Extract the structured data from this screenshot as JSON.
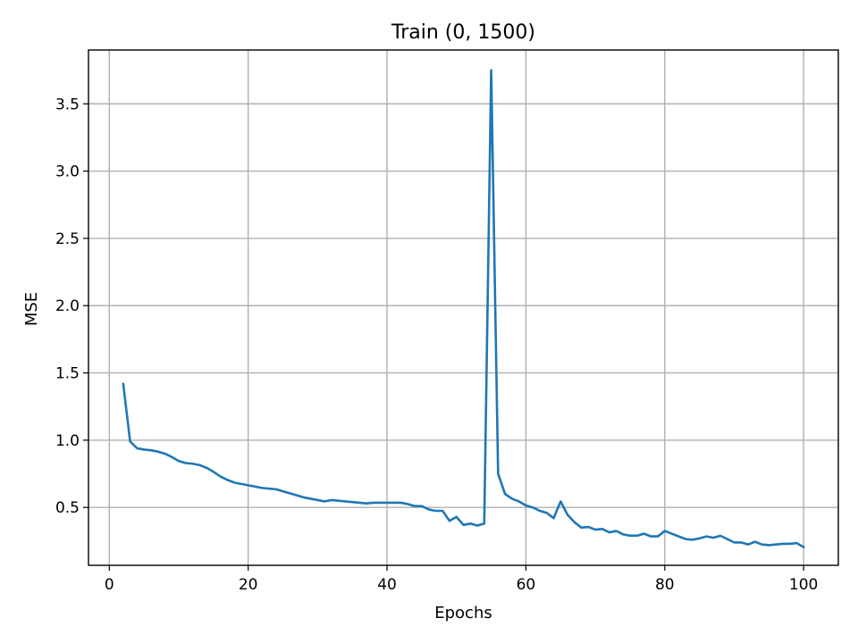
{
  "chart_data": {
    "type": "line",
    "title": "Train (0, 1500)",
    "xlabel": "Epochs",
    "ylabel": "MSE",
    "xlim": [
      -3,
      105
    ],
    "ylim": [
      0.07,
      3.9
    ],
    "x_ticks": [
      0,
      20,
      40,
      60,
      80,
      100
    ],
    "y_ticks": [
      0.5,
      1.0,
      1.5,
      2.0,
      2.5,
      3.0,
      3.5
    ],
    "x_tick_labels": [
      "0",
      "20",
      "40",
      "60",
      "80",
      "100"
    ],
    "y_tick_labels": [
      "0.5",
      "1.0",
      "1.5",
      "2.0",
      "2.5",
      "3.0",
      "3.5"
    ],
    "grid": true,
    "line_color": "#1f77b4",
    "series": [
      {
        "x": [
          2,
          3,
          4,
          5,
          6,
          7,
          8,
          9,
          10,
          11,
          12,
          13,
          14,
          15,
          16,
          17,
          18,
          19,
          20,
          21,
          22,
          23,
          24,
          25,
          26,
          27,
          28,
          29,
          30,
          31,
          32,
          33,
          34,
          35,
          36,
          37,
          38,
          39,
          40,
          41,
          42,
          43,
          44,
          45,
          46,
          47,
          48,
          49,
          50,
          51,
          52,
          53,
          54,
          55,
          56,
          57,
          58,
          59,
          60,
          61,
          62,
          63,
          64,
          65,
          66,
          67,
          68,
          69,
          70,
          71,
          72,
          73,
          74,
          75,
          76,
          77,
          78,
          79,
          80,
          81,
          82,
          83,
          84,
          85,
          86,
          87,
          88,
          89,
          90,
          91,
          92,
          93,
          94,
          95,
          96,
          97,
          98,
          99,
          100
        ],
        "y": [
          1.42,
          0.99,
          0.94,
          0.93,
          0.925,
          0.915,
          0.9,
          0.875,
          0.845,
          0.83,
          0.825,
          0.815,
          0.795,
          0.765,
          0.73,
          0.705,
          0.685,
          0.675,
          0.665,
          0.655,
          0.645,
          0.64,
          0.635,
          0.62,
          0.605,
          0.59,
          0.575,
          0.565,
          0.555,
          0.545,
          0.555,
          0.55,
          0.545,
          0.54,
          0.535,
          0.53,
          0.535,
          0.535,
          0.535,
          0.535,
          0.535,
          0.525,
          0.51,
          0.51,
          0.485,
          0.475,
          0.475,
          0.4,
          0.43,
          0.37,
          0.38,
          0.365,
          0.38,
          3.75,
          0.75,
          0.6,
          0.565,
          0.545,
          0.515,
          0.5,
          0.475,
          0.46,
          0.42,
          0.545,
          0.445,
          0.39,
          0.35,
          0.355,
          0.335,
          0.34,
          0.315,
          0.325,
          0.3,
          0.29,
          0.29,
          0.305,
          0.285,
          0.285,
          0.325,
          0.305,
          0.285,
          0.265,
          0.26,
          0.27,
          0.285,
          0.275,
          0.29,
          0.265,
          0.24,
          0.24,
          0.225,
          0.245,
          0.225,
          0.22,
          0.225,
          0.23,
          0.23,
          0.235,
          0.205
        ]
      }
    ]
  }
}
